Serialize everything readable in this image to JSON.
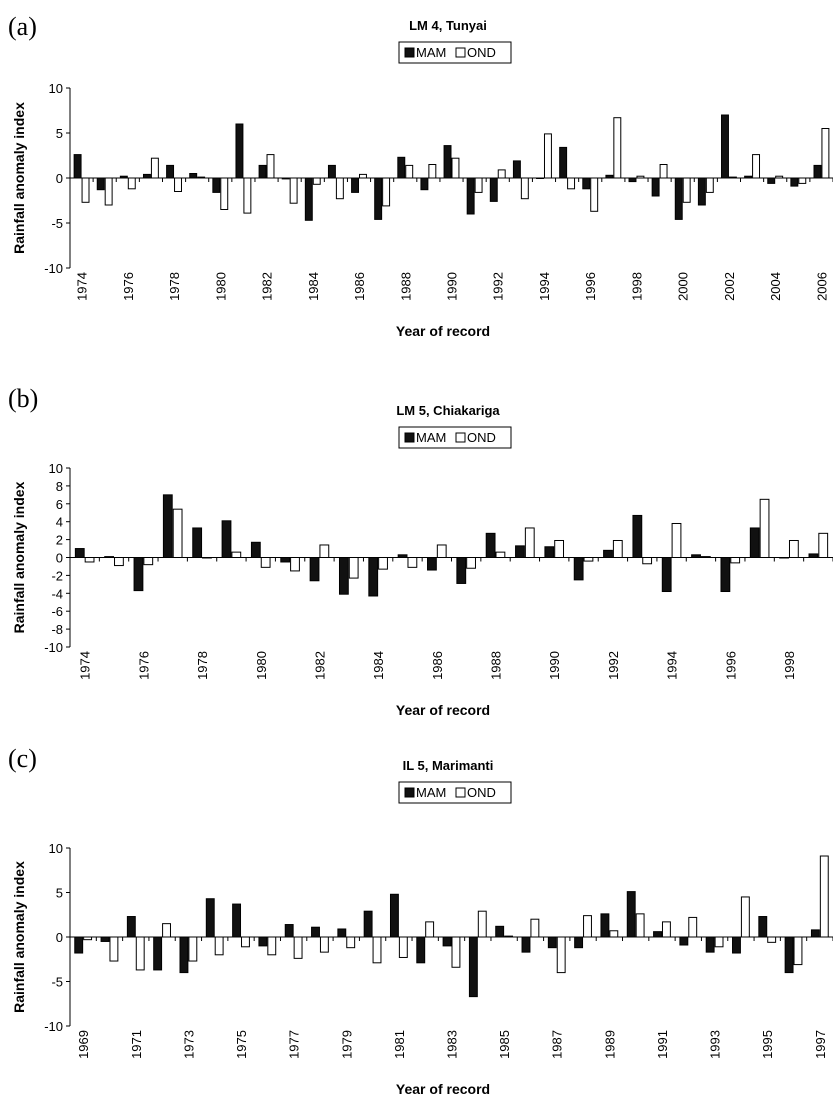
{
  "chart_data": [
    {
      "panel": "(a)",
      "type": "bar",
      "title": "LM 4, Tunyai",
      "xlabel": "Year of record",
      "ylabel": "Rainfall anomaly index",
      "ylim": [
        -10,
        10
      ],
      "yticks": [
        -10,
        -5,
        0,
        5,
        10
      ],
      "x_start": 1974,
      "x_end": 2006,
      "x_tick_labels": [
        "1974",
        "1976",
        "1978",
        "1980",
        "1982",
        "1984",
        "1986",
        "1988",
        "1990",
        "1992",
        "1994",
        "1996",
        "1998",
        "2000",
        "2002",
        "2004",
        "2006"
      ],
      "legend": "top-center",
      "series": [
        {
          "name": "MAM",
          "color": "#111111",
          "values": [
            2.6,
            -1.3,
            0.2,
            0.4,
            1.4,
            0.5,
            -1.6,
            6.0,
            1.4,
            -0.1,
            -4.7,
            1.4,
            -1.6,
            -4.6,
            2.3,
            -1.3,
            3.6,
            -4.0,
            -2.6,
            1.9,
            0.0,
            3.4,
            -1.2,
            0.3,
            -0.4,
            -2.0,
            -4.6,
            -3.0,
            7.0,
            0.2,
            -0.6,
            -0.9,
            1.4
          ]
        },
        {
          "name": "OND",
          "color": "#ffffff",
          "values": [
            -2.7,
            -3.0,
            -1.2,
            2.2,
            -1.5,
            0.1,
            -3.5,
            -3.9,
            2.6,
            -2.8,
            -0.7,
            -2.3,
            0.4,
            -3.1,
            1.4,
            1.5,
            2.2,
            -1.6,
            0.9,
            -2.3,
            4.9,
            -1.2,
            -3.7,
            6.7,
            0.2,
            1.5,
            -2.7,
            -1.6,
            0.1,
            2.6,
            0.2,
            -0.6,
            5.5
          ]
        }
      ]
    },
    {
      "panel": "(b)",
      "type": "bar",
      "title": "LM 5, Chiakariga",
      "xlabel": "Year of record",
      "ylabel": "Rainfall anomaly index",
      "ylim": [
        -10,
        10
      ],
      "yticks": [
        -10,
        -8,
        -6,
        -4,
        -2,
        0,
        2,
        4,
        6,
        8,
        10
      ],
      "x_start": 1974,
      "x_end": 1999,
      "x_tick_labels": [
        "1974",
        "1976",
        "1978",
        "1980",
        "1982",
        "1984",
        "1986",
        "1988",
        "1990",
        "1992",
        "1994",
        "1996",
        "1998"
      ],
      "legend": "top-center",
      "series": [
        {
          "name": "MAM",
          "color": "#111111",
          "values": [
            1.0,
            0.1,
            -3.7,
            7.0,
            3.3,
            4.1,
            1.7,
            -0.5,
            -2.6,
            -4.1,
            -4.3,
            0.3,
            -1.4,
            -2.9,
            2.7,
            1.3,
            1.2,
            -2.5,
            0.8,
            4.7,
            -3.8,
            0.3,
            -3.8,
            3.3,
            0.0,
            0.4
          ]
        },
        {
          "name": "OND",
          "color": "#ffffff",
          "values": [
            -0.5,
            -0.9,
            -0.8,
            5.4,
            0.0,
            0.6,
            -1.1,
            -1.5,
            1.4,
            -2.3,
            -1.3,
            -1.1,
            1.4,
            -1.2,
            0.6,
            3.3,
            1.9,
            -0.4,
            1.9,
            -0.7,
            3.8,
            0.1,
            -0.6,
            6.5,
            1.9,
            2.7
          ]
        }
      ]
    },
    {
      "panel": "(c)",
      "type": "bar",
      "title": "IL 5, Marimanti",
      "xlabel": "Year of record",
      "ylabel": "Rainfall anomaly index",
      "ylim": [
        -10,
        10
      ],
      "yticks": [
        -10,
        -5,
        0,
        5,
        10
      ],
      "x_start": 1969,
      "x_end": 1997,
      "x_tick_labels": [
        "1969",
        "1971",
        "1973",
        "1975",
        "1977",
        "1979",
        "1981",
        "1983",
        "1985",
        "1987",
        "1989",
        "1991",
        "1993",
        "1995",
        "1997"
      ],
      "legend": "top-center",
      "series": [
        {
          "name": "MAM",
          "color": "#111111",
          "values": [
            -1.8,
            -0.5,
            2.3,
            -3.7,
            -4.0,
            4.3,
            3.7,
            -1.0,
            1.4,
            1.1,
            0.9,
            2.9,
            4.8,
            -2.9,
            -1.0,
            -6.7,
            1.2,
            -1.7,
            -1.2,
            -1.2,
            2.6,
            5.1,
            0.6,
            -0.9,
            -1.7,
            -1.8,
            2.3,
            -4.0,
            0.8
          ]
        },
        {
          "name": "OND",
          "color": "#ffffff",
          "values": [
            -0.3,
            -2.7,
            -3.7,
            1.5,
            -2.7,
            -2.0,
            -1.1,
            -2.0,
            -2.4,
            -1.7,
            -1.2,
            -2.9,
            -2.3,
            1.7,
            -3.4,
            2.9,
            0.1,
            2.0,
            -4.0,
            2.4,
            0.7,
            2.6,
            1.7,
            2.2,
            -1.1,
            4.5,
            -0.6,
            -3.1,
            9.1
          ]
        }
      ]
    }
  ]
}
